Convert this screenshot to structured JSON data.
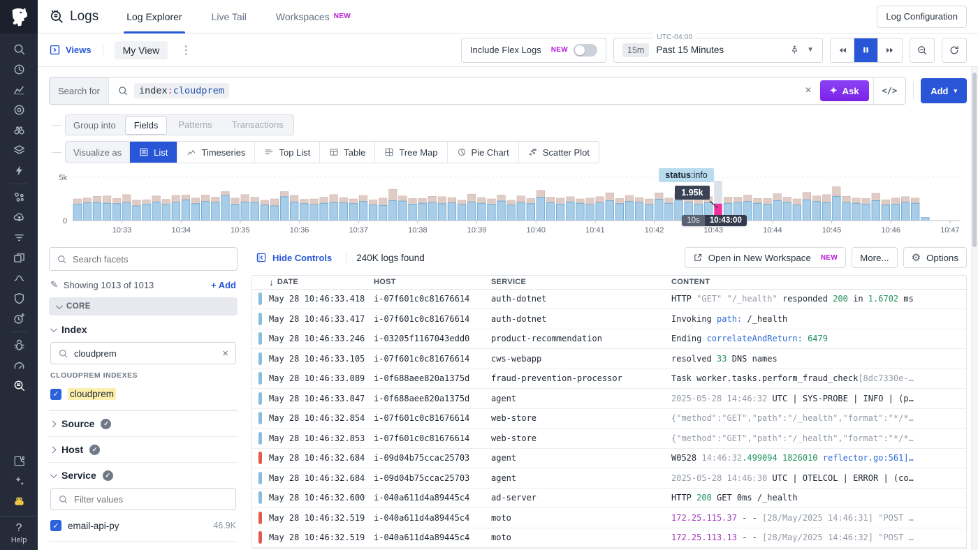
{
  "colors": {
    "accent_blue": "#2856d6",
    "accent_purple": "#7a22e8",
    "new_badge": "#b518d8",
    "info_bar": "#85bede",
    "error_bar": "#e25a4e",
    "chart_info_fill": "#a7cde8",
    "chart_info_stroke": "#66a3cc",
    "chart_warn_fill": "#e0ccc5",
    "chart_warn_stroke": "#cdb6ae",
    "chart_hover_fill": "#f2309b",
    "chart_dim_fill": "#dde1e8",
    "highlight_yellow": "#fdf0ad"
  },
  "rail": {
    "top_icons": [
      "search",
      "history",
      "metrics",
      "target",
      "watchdog",
      "layers",
      "events"
    ],
    "mid_icons": [
      "service-map",
      "cloud-cost",
      "pipelines",
      "software",
      "apm",
      "security",
      "synthetics"
    ],
    "low_icons": [
      "bug",
      "profiling",
      "logs"
    ],
    "active_icon": "logs",
    "bottom_icons": [
      "integrations",
      "sparkles",
      "bits-ai"
    ],
    "help_glyph": "?",
    "help_label": "Help"
  },
  "header": {
    "product": "Logs",
    "tabs": [
      {
        "label": "Log Explorer",
        "active": true,
        "badge": ""
      },
      {
        "label": "Live Tail",
        "active": false,
        "badge": ""
      },
      {
        "label": "Workspaces",
        "active": false,
        "badge": "NEW"
      }
    ],
    "config_button": "Log Configuration"
  },
  "toolbar": {
    "views_label": "Views",
    "view_name": "My View",
    "kebab": "⋮",
    "flex_label": "Include Flex Logs",
    "flex_badge": "NEW",
    "time_badge": "15m",
    "time_label": "Past 15 Minutes",
    "timezone": "UTC-04:00"
  },
  "search": {
    "label": "Search for",
    "query": [
      {
        "text": "index",
        "color": "k"
      },
      {
        "text": ":",
        "color": "s"
      },
      {
        "text": "cloudprem",
        "color": "v"
      }
    ],
    "clear_glyph": "×",
    "ask_label": "Ask",
    "ask_glyph": "✦",
    "code_label": "</>",
    "add_label": "Add",
    "add_caret": "▾"
  },
  "controls": {
    "group_label": "Group into",
    "group_tabs": [
      {
        "label": "Fields",
        "state": "active"
      },
      {
        "label": "Patterns",
        "state": "disabled"
      },
      {
        "label": "Transactions",
        "state": "disabled"
      }
    ],
    "viz_label": "Visualize as",
    "viz_tabs": [
      {
        "label": "List",
        "icon": "vlist",
        "active": true
      },
      {
        "label": "Timeseries",
        "icon": "vtimeseries",
        "active": false
      },
      {
        "label": "Top List",
        "icon": "vtoplist",
        "active": false
      },
      {
        "label": "Table",
        "icon": "vtable",
        "active": false
      },
      {
        "label": "Tree Map",
        "icon": "vtreemap",
        "active": false
      },
      {
        "label": "Pie Chart",
        "icon": "vpie",
        "active": false
      },
      {
        "label": "Scatter Plot",
        "icon": "vscatter",
        "active": false
      }
    ]
  },
  "chart_data": {
    "type": "bar",
    "stacked": true,
    "bucket": "10s",
    "ylim": [
      0,
      5000
    ],
    "y_ticks": [
      "0",
      "5k"
    ],
    "x_ticks": [
      "10:33",
      "10:34",
      "10:35",
      "10:36",
      "10:37",
      "10:38",
      "10:39",
      "10:40",
      "10:41",
      "10:42",
      "10:43",
      "10:44",
      "10:45",
      "10:46",
      "10:47"
    ],
    "first_tick_slot": 5,
    "slots_per_tick": 6,
    "total_slots": 90,
    "series": [
      {
        "name": "info"
      },
      {
        "name": "warn"
      }
    ],
    "hover": {
      "index": 65,
      "label_bold": "status",
      "label_rest": ":info",
      "value": "1.95k",
      "badge_bucket": "10s",
      "badge_time": "10:43:00"
    },
    "bars": [
      [
        1900,
        600
      ],
      [
        2050,
        550
      ],
      [
        2100,
        700
      ],
      [
        2000,
        850
      ],
      [
        1950,
        600
      ],
      [
        2100,
        900
      ],
      [
        1700,
        650
      ],
      [
        1900,
        500
      ],
      [
        2150,
        700
      ],
      [
        1850,
        600
      ],
      [
        2100,
        800
      ],
      [
        2400,
        550
      ],
      [
        1950,
        650
      ],
      [
        2200,
        750
      ],
      [
        2100,
        600
      ],
      [
        2900,
        450
      ],
      [
        1900,
        700
      ],
      [
        2150,
        850
      ],
      [
        2100,
        600
      ],
      [
        1800,
        550
      ],
      [
        1700,
        800
      ],
      [
        2750,
        600
      ],
      [
        2150,
        750
      ],
      [
        1950,
        500
      ],
      [
        1850,
        650
      ],
      [
        2000,
        700
      ],
      [
        2100,
        900
      ],
      [
        2050,
        600
      ],
      [
        1950,
        550
      ],
      [
        2200,
        700
      ],
      [
        1800,
        600
      ],
      [
        1750,
        850
      ],
      [
        2300,
        1300
      ],
      [
        2250,
        600
      ],
      [
        1900,
        650
      ],
      [
        2000,
        550
      ],
      [
        2100,
        700
      ],
      [
        1950,
        800
      ],
      [
        2050,
        600
      ],
      [
        1850,
        500
      ],
      [
        2150,
        900
      ],
      [
        2000,
        650
      ],
      [
        1900,
        600
      ],
      [
        2250,
        700
      ],
      [
        1800,
        550
      ],
      [
        2100,
        750
      ],
      [
        1950,
        600
      ],
      [
        2700,
        800
      ],
      [
        2050,
        650
      ],
      [
        1900,
        700
      ],
      [
        2150,
        600
      ],
      [
        2000,
        500
      ],
      [
        1850,
        750
      ],
      [
        2100,
        650
      ],
      [
        2300,
        900
      ],
      [
        1950,
        600
      ],
      [
        2200,
        700
      ],
      [
        2100,
        550
      ],
      [
        1850,
        650
      ],
      [
        2450,
        750
      ],
      [
        2000,
        600
      ],
      [
        2350,
        800
      ],
      [
        2100,
        650
      ],
      [
        1900,
        550
      ],
      [
        2050,
        700
      ],
      [
        1950,
        2650
      ],
      [
        2000,
        700
      ],
      [
        2100,
        600
      ],
      [
        2200,
        750
      ],
      [
        2000,
        550
      ],
      [
        1900,
        650
      ],
      [
        2300,
        800
      ],
      [
        2100,
        600
      ],
      [
        1800,
        700
      ],
      [
        2400,
        850
      ],
      [
        2200,
        650
      ],
      [
        2100,
        900
      ],
      [
        2800,
        1100
      ],
      [
        2100,
        700
      ],
      [
        2000,
        600
      ],
      [
        1900,
        650
      ],
      [
        2300,
        850
      ],
      [
        1800,
        600
      ],
      [
        1900,
        700
      ],
      [
        2100,
        650
      ],
      [
        2000,
        600
      ],
      [
        350,
        0
      ]
    ]
  },
  "facets": {
    "search_placeholder": "Search facets",
    "pencil_glyph": "✎",
    "showing": "Showing 1013 of 1013",
    "add_label": "Add",
    "core_label": "CORE",
    "index": {
      "title": "Index",
      "search_value": "cloudprem",
      "clear_glyph": "×",
      "group_label": "CLOUDPREM INDEXES",
      "items": [
        {
          "label": "cloudprem",
          "checked": true,
          "highlight": true,
          "count": ""
        }
      ]
    },
    "collapsed": [
      {
        "title": "Source",
        "checked_badge": true
      },
      {
        "title": "Host",
        "checked_badge": true
      }
    ],
    "service": {
      "title": "Service",
      "filter_placeholder": "Filter values",
      "items": [
        {
          "label": "email-api-py",
          "checked": true,
          "highlight": false,
          "count": "46.9K"
        }
      ]
    },
    "check_glyph": "✓"
  },
  "results": {
    "hide_controls": "Hide Controls",
    "count": "240K logs found",
    "workspace": "Open in New Workspace",
    "workspace_badge": "NEW",
    "more": "More...",
    "options": "Options",
    "gear_glyph": "⚙"
  },
  "table": {
    "sort_glyph": "↓",
    "columns": [
      "DATE",
      "HOST",
      "SERVICE",
      "CONTENT"
    ],
    "rows": [
      {
        "status": "info",
        "date": "May 28 10:46:33.418",
        "host": "i-07f601c0c81676614",
        "service": "auth-dotnet",
        "content": [
          {
            "t": "HTTP ",
            "c": "dark"
          },
          {
            "t": "\"GET\" \"/_health\" ",
            "c": "gray"
          },
          {
            "t": "responded ",
            "c": "dark"
          },
          {
            "t": "200",
            "c": "green"
          },
          {
            "t": " in ",
            "c": "dark"
          },
          {
            "t": "1.6702",
            "c": "green"
          },
          {
            "t": " ms",
            "c": "dark"
          }
        ]
      },
      {
        "status": "info",
        "date": "May 28 10:46:33.417",
        "host": "i-07f601c0c81676614",
        "service": "auth-dotnet",
        "content": [
          {
            "t": "Invoking ",
            "c": "dark"
          },
          {
            "t": "path: ",
            "c": "blue"
          },
          {
            "t": "/_health",
            "c": "dark"
          }
        ]
      },
      {
        "status": "info",
        "date": "May 28 10:46:33.246",
        "host": "i-03205f1167043edd0",
        "service": "product-recommendation",
        "content": [
          {
            "t": "Ending ",
            "c": "dark"
          },
          {
            "t": "correlateAndReturn: ",
            "c": "blue"
          },
          {
            "t": "6479",
            "c": "green"
          }
        ]
      },
      {
        "status": "info",
        "date": "May 28 10:46:33.105",
        "host": "i-07f601c0c81676614",
        "service": "cws-webapp",
        "content": [
          {
            "t": "resolved ",
            "c": "dark"
          },
          {
            "t": "33",
            "c": "green"
          },
          {
            "t": " DNS names",
            "c": "dark"
          }
        ]
      },
      {
        "status": "info",
        "date": "May 28 10:46:33.089",
        "host": "i-0f688aee820a1375d",
        "service": "fraud-prevention-processor",
        "content": [
          {
            "t": "Task worker.tasks.perform_fraud_check",
            "c": "dark"
          },
          {
            "t": "[8dc7330e-…",
            "c": "gray"
          }
        ]
      },
      {
        "status": "info",
        "date": "May 28 10:46:33.047",
        "host": "i-0f688aee820a1375d",
        "service": "agent",
        "content": [
          {
            "t": "2025-05-28 14:46:32 ",
            "c": "gray"
          },
          {
            "t": "UTC | SYS-PROBE | INFO | (p…",
            "c": "dark"
          }
        ]
      },
      {
        "status": "info",
        "date": "May 28 10:46:32.854",
        "host": "i-07f601c0c81676614",
        "service": "web-store",
        "content": [
          {
            "t": "{\"method\":\"GET\",\"path\":\"/_health\",\"format\":\"*/*…",
            "c": "gray"
          }
        ]
      },
      {
        "status": "info",
        "date": "May 28 10:46:32.853",
        "host": "i-07f601c0c81676614",
        "service": "web-store",
        "content": [
          {
            "t": "{\"method\":\"GET\",\"path\":\"/_health\",\"format\":\"*/*…",
            "c": "gray"
          }
        ]
      },
      {
        "status": "error",
        "date": "May 28 10:46:32.684",
        "host": "i-09d04b75ccac25703",
        "service": "agent",
        "content": [
          {
            "t": "W0528 ",
            "c": "dark"
          },
          {
            "t": "14:46:32",
            "c": "gray"
          },
          {
            "t": ".499094 1826010 ",
            "c": "green"
          },
          {
            "t": "reflector.go:561]…",
            "c": "blue"
          }
        ]
      },
      {
        "status": "info",
        "date": "May 28 10:46:32.684",
        "host": "i-09d04b75ccac25703",
        "service": "agent",
        "content": [
          {
            "t": "2025-05-28 14:46:30 ",
            "c": "gray"
          },
          {
            "t": "UTC | OTELCOL | ERROR | (co…",
            "c": "dark"
          }
        ]
      },
      {
        "status": "info",
        "date": "May 28 10:46:32.600",
        "host": "i-040a611d4a89445c4",
        "service": "ad-server",
        "content": [
          {
            "t": "HTTP ",
            "c": "dark"
          },
          {
            "t": "200",
            "c": "green"
          },
          {
            "t": " GET 0ms /_health",
            "c": "dark"
          }
        ]
      },
      {
        "status": "error",
        "date": "May 28 10:46:32.519",
        "host": "i-040a611d4a89445c4",
        "service": "moto",
        "content": [
          {
            "t": "172.25.115.37",
            "c": "purple"
          },
          {
            "t": " - - ",
            "c": "dark"
          },
          {
            "t": "[28/May/2025 14:46:31] \"POST …",
            "c": "gray"
          }
        ]
      },
      {
        "status": "error",
        "date": "May 28 10:46:32.519",
        "host": "i-040a611d4a89445c4",
        "service": "moto",
        "content": [
          {
            "t": "172.25.113.13",
            "c": "purple"
          },
          {
            "t": " - - ",
            "c": "dark"
          },
          {
            "t": "[28/May/2025 14:46:32] \"POST …",
            "c": "gray"
          }
        ]
      }
    ]
  }
}
